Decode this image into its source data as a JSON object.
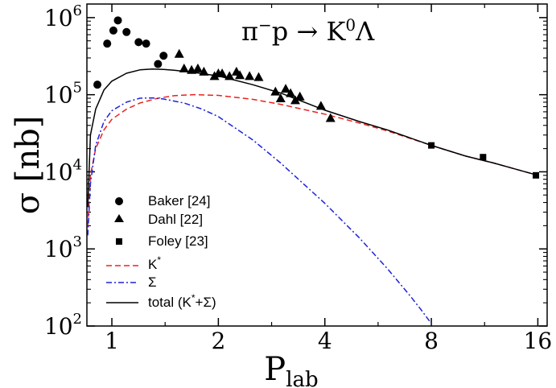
{
  "chart_data": {
    "type": "line",
    "title": "π⁻p → K⁰Λ",
    "title_parts": {
      "a": "π",
      "a_sup": "−",
      "b": "p → K",
      "b_sup": "0",
      "c": "Λ"
    },
    "xlabel": "P",
    "xlabel_sub": "lab",
    "ylabel": "σ [nb]",
    "x_scale": "log2",
    "y_scale": "log10",
    "xlim": [
      0.85,
      17
    ],
    "ylim": [
      100,
      1500000
    ],
    "x_ticks": [
      {
        "value": 1,
        "label": "1"
      },
      {
        "value": 2,
        "label": "2"
      },
      {
        "value": 4,
        "label": "4"
      },
      {
        "value": 8,
        "label": "8"
      },
      {
        "value": 16,
        "label": "16"
      }
    ],
    "y_ticks": [
      {
        "value": 100,
        "base": "10",
        "exp": "2"
      },
      {
        "value": 1000,
        "base": "10",
        "exp": "3"
      },
      {
        "value": 10000,
        "base": "10",
        "exp": "4"
      },
      {
        "value": 100000,
        "base": "10",
        "exp": "5"
      },
      {
        "value": 1000000,
        "base": "10",
        "exp": "6"
      }
    ],
    "grid": false,
    "legend_position": "bottom-left",
    "series": [
      {
        "name": "Baker [24]",
        "kind": "points",
        "marker": "circle",
        "color": "#000000",
        "x": [
          0.91,
          0.97,
          1.01,
          1.04,
          1.1,
          1.19,
          1.25,
          1.35,
          1.4
        ],
        "y": [
          135000,
          460000,
          680000,
          920000,
          650000,
          480000,
          460000,
          250000,
          320000
        ]
      },
      {
        "name": "Dahl [22]",
        "kind": "points",
        "marker": "triangle",
        "color": "#000000",
        "x": [
          1.55,
          1.6,
          1.68,
          1.75,
          1.82,
          1.95,
          2.0,
          2.05,
          2.15,
          2.25,
          2.3,
          2.45,
          2.6,
          2.9,
          3.0,
          3.1,
          3.2,
          3.3,
          3.4,
          3.9,
          4.15
        ],
        "y": [
          340000,
          220000,
          210000,
          220000,
          200000,
          175000,
          190000,
          190000,
          175000,
          200000,
          180000,
          175000,
          170000,
          110000,
          90000,
          120000,
          105000,
          85000,
          95000,
          72000,
          50000
        ]
      },
      {
        "name": "Foley [23]",
        "kind": "points",
        "marker": "square",
        "color": "#000000",
        "x": [
          8.0,
          11.2,
          15.8
        ],
        "y": [
          22000,
          15500,
          9000
        ]
      },
      {
        "name": "K*",
        "kind": "line",
        "dash": "dashed",
        "color": "#e8231f",
        "x": [
          0.855,
          0.87,
          0.9,
          0.95,
          1.0,
          1.1,
          1.2,
          1.35,
          1.5,
          1.7,
          2.0,
          2.5,
          3.0,
          4.0,
          5.0,
          6.0,
          8.0,
          10.0,
          12.0,
          16.0
        ],
        "y": [
          2000,
          9000,
          20000,
          35000,
          48000,
          65000,
          78000,
          90000,
          97000,
          100000,
          98000,
          87000,
          75000,
          56000,
          43000,
          34000,
          22000,
          16000,
          13000,
          9000
        ]
      },
      {
        "name": "Σ",
        "kind": "line",
        "dash": "dashdot",
        "color": "#1f22d8",
        "x": [
          0.855,
          0.87,
          0.9,
          0.95,
          1.0,
          1.1,
          1.2,
          1.3,
          1.4,
          1.6,
          1.8,
          2.0,
          2.5,
          3.0,
          4.0,
          5.0,
          6.0,
          7.0,
          7.5,
          8.1
        ],
        "y": [
          1500,
          7000,
          22000,
          45000,
          62000,
          80000,
          90000,
          91000,
          88000,
          78000,
          65000,
          52000,
          26000,
          13000,
          3900,
          1400,
          560,
          240,
          160,
          100
        ]
      },
      {
        "name": "total (K*+Σ)",
        "kind": "line",
        "dash": "solid",
        "color": "#000000",
        "x": [
          0.855,
          0.87,
          0.9,
          0.95,
          1.0,
          1.1,
          1.2,
          1.3,
          1.4,
          1.5,
          1.7,
          2.0,
          2.5,
          3.0,
          4.0,
          5.0,
          6.0,
          8.0,
          10.0,
          12.0,
          16.0
        ],
        "y": [
          3500,
          30000,
          65000,
          115000,
          150000,
          190000,
          210000,
          215000,
          213000,
          208000,
          195000,
          175000,
          135000,
          105000,
          63000,
          45000,
          35000,
          22000,
          16000,
          13000,
          9000
        ]
      }
    ],
    "legend": {
      "entries": [
        {
          "label": "Baker [24]",
          "symbol": "circle"
        },
        {
          "label": "Dahl [22]",
          "symbol": "triangle"
        },
        {
          "label": "Foley [23]",
          "symbol": "square"
        },
        {
          "label": "K",
          "sup": "*",
          "symbol": "dashed-red"
        },
        {
          "label": "Σ",
          "symbol": "dashdot-blue"
        },
        {
          "label": "total (K",
          "sup": "*",
          "tail": "+Σ)",
          "symbol": "solid-black"
        }
      ]
    }
  }
}
